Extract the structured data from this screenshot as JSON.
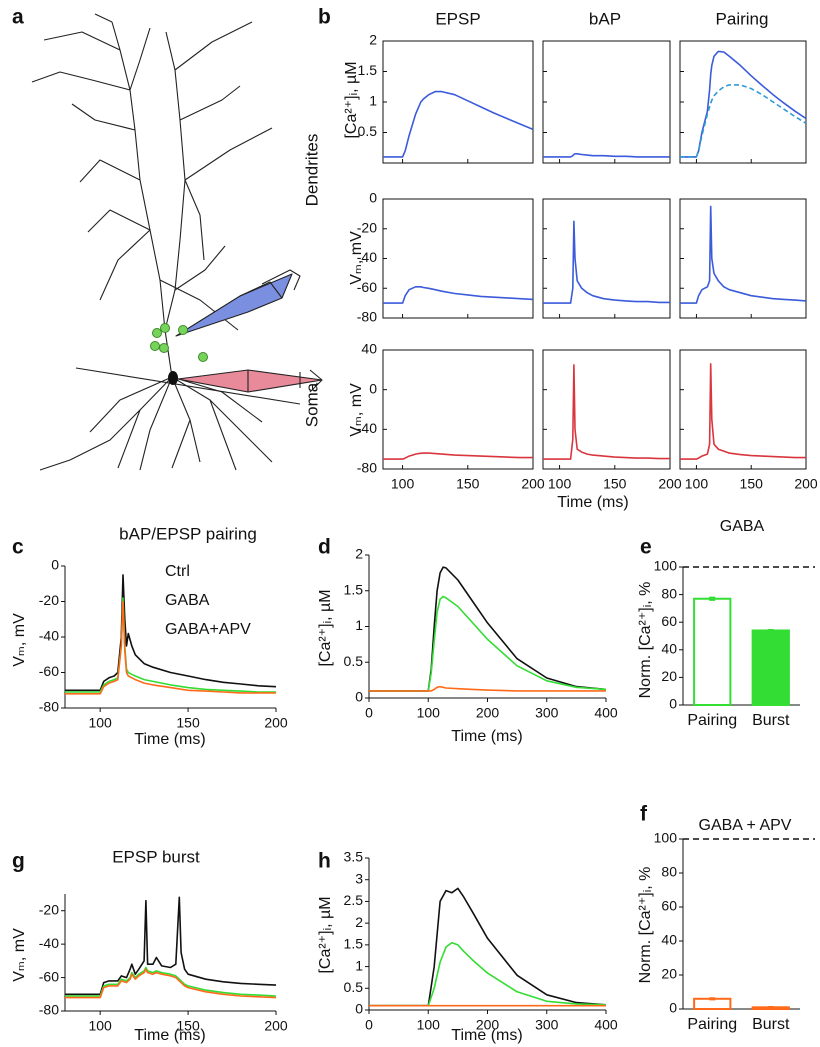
{
  "figure": {
    "panel_a": "a"
  },
  "chart_data": [
    {
      "type": "line",
      "panel": "b",
      "title": "EPSP",
      "ylabel": "[Ca²⁺]ᵢ, µM",
      "x": [
        85,
        100,
        102,
        105,
        110,
        112,
        113,
        114,
        116,
        120,
        125,
        130,
        140,
        150,
        160,
        170,
        180,
        190,
        200
      ],
      "xlim": [
        85,
        200
      ],
      "xticks": [
        100,
        150,
        200
      ],
      "ylim": [
        0,
        2
      ],
      "yticks": [
        0.5,
        1,
        1.5,
        2
      ],
      "series": [
        {
          "color": "#3b5bdb",
          "values": [
            0.1,
            0.1,
            0.2,
            0.45,
            0.8,
            0.9,
            0.95,
            1.0,
            1.05,
            1.12,
            1.17,
            1.17,
            1.12,
            1.02,
            0.92,
            0.82,
            0.73,
            0.64,
            0.55
          ]
        }
      ]
    },
    {
      "type": "line",
      "title": "bAP",
      "x": [
        85,
        100,
        102,
        105,
        110,
        112,
        113,
        114,
        116,
        120,
        125,
        130,
        140,
        150,
        160,
        170,
        180,
        190,
        200
      ],
      "xlim": [
        85,
        200
      ],
      "xticks": [
        100,
        150,
        200
      ],
      "ylim": [
        0,
        2
      ],
      "yticks": [
        0.5,
        1,
        1.5,
        2
      ],
      "series": [
        {
          "color": "#3b5bdb",
          "values": [
            0.1,
            0.1,
            0.1,
            0.1,
            0.1,
            0.12,
            0.14,
            0.15,
            0.15,
            0.14,
            0.13,
            0.12,
            0.12,
            0.11,
            0.11,
            0.1,
            0.1,
            0.1,
            0.1
          ]
        }
      ]
    },
    {
      "type": "line",
      "title": "Pairing",
      "x": [
        85,
        100,
        102,
        105,
        110,
        112,
        113,
        114,
        116,
        120,
        125,
        130,
        140,
        150,
        160,
        170,
        180,
        190,
        200
      ],
      "xlim": [
        85,
        200
      ],
      "xticks": [
        100,
        150,
        200
      ],
      "ylim": [
        0,
        2
      ],
      "yticks": [
        0.5,
        1,
        1.5,
        2
      ],
      "series": [
        {
          "color": "#3b5bdb",
          "values": [
            0.1,
            0.1,
            0.2,
            0.5,
            0.85,
            1.2,
            1.45,
            1.6,
            1.75,
            1.83,
            1.82,
            1.75,
            1.6,
            1.43,
            1.27,
            1.12,
            0.98,
            0.85,
            0.73
          ]
        },
        {
          "color": "#2e9bd6",
          "dashed": true,
          "values": [
            0.1,
            0.1,
            0.2,
            0.45,
            0.8,
            0.92,
            0.98,
            1.03,
            1.1,
            1.18,
            1.25,
            1.28,
            1.28,
            1.22,
            1.12,
            1.0,
            0.88,
            0.76,
            0.65
          ]
        }
      ]
    },
    {
      "type": "line",
      "row_label": "Dendrites",
      "ylabel": "Vₘ, mV",
      "x": [
        85,
        100,
        102,
        105,
        110,
        112,
        113,
        114,
        116,
        120,
        125,
        130,
        140,
        150,
        160,
        170,
        180,
        190,
        200
      ],
      "xlim": [
        85,
        200
      ],
      "xticks": [
        100,
        150,
        200
      ],
      "ylim": [
        -80,
        0
      ],
      "yticks": [
        -80,
        -60,
        -40,
        -20,
        0
      ],
      "series": [
        {
          "color": "#3b5bdb",
          "values": [
            -70,
            -70,
            -65,
            -61,
            -59,
            -59,
            -59,
            -59,
            -59.5,
            -60,
            -61,
            -62,
            -63.5,
            -64.5,
            -65.5,
            -66,
            -66.5,
            -67,
            -67.5
          ]
        }
      ]
    },
    {
      "type": "line",
      "x": [
        85,
        100,
        102,
        105,
        110,
        112,
        113,
        114,
        116,
        120,
        125,
        130,
        140,
        150,
        160,
        170,
        180,
        190,
        200
      ],
      "xlim": [
        85,
        200
      ],
      "xticks": [
        100,
        150,
        200
      ],
      "ylim": [
        -80,
        0
      ],
      "yticks": [
        -80,
        -60,
        -40,
        -20,
        0
      ],
      "series": [
        {
          "color": "#3b5bdb",
          "values": [
            -70,
            -70,
            -70,
            -70,
            -70,
            -60,
            -15,
            -40,
            -55,
            -60,
            -63,
            -65,
            -67,
            -68,
            -68.5,
            -69,
            -69,
            -69.5,
            -69.5
          ]
        }
      ]
    },
    {
      "type": "line",
      "x": [
        85,
        100,
        102,
        105,
        110,
        112,
        113,
        114,
        116,
        120,
        125,
        130,
        140,
        150,
        160,
        170,
        180,
        190,
        200
      ],
      "xlim": [
        85,
        200
      ],
      "xticks": [
        100,
        150,
        200
      ],
      "ylim": [
        -80,
        0
      ],
      "yticks": [
        -80,
        -60,
        -40,
        -20,
        0
      ],
      "series": [
        {
          "color": "#3b5bdb",
          "values": [
            -70,
            -70,
            -65,
            -61,
            -59,
            -55,
            -5,
            -40,
            -50,
            -55,
            -59,
            -61,
            -63,
            -65,
            -66,
            -67,
            -67.5,
            -68,
            -68.5
          ]
        }
      ]
    },
    {
      "type": "line",
      "row_label": "Soma",
      "ylabel": "Vₘ, mV",
      "x": [
        85,
        100,
        102,
        105,
        110,
        112,
        113,
        114,
        116,
        120,
        125,
        130,
        140,
        150,
        160,
        170,
        180,
        190,
        200
      ],
      "xlim": [
        85,
        200
      ],
      "xticks": [
        100,
        150,
        200
      ],
      "ylim": [
        -80,
        40
      ],
      "yticks": [
        -80,
        -40,
        0,
        40
      ],
      "series": [
        {
          "color": "#d9363e",
          "values": [
            -70,
            -70,
            -69,
            -67,
            -65,
            -64.5,
            -64.3,
            -64.2,
            -64,
            -64,
            -64.5,
            -65,
            -66,
            -66.5,
            -67,
            -67.5,
            -68,
            -68.5,
            -68.5
          ]
        }
      ]
    },
    {
      "type": "line",
      "xlabel": "Time (ms)",
      "x": [
        85,
        100,
        102,
        105,
        110,
        112,
        113,
        114,
        116,
        120,
        125,
        130,
        140,
        150,
        160,
        170,
        180,
        190,
        200
      ],
      "xlim": [
        85,
        200
      ],
      "xticks": [
        100,
        150,
        200
      ],
      "ylim": [
        -80,
        40
      ],
      "yticks": [
        -80,
        -40,
        0,
        40
      ],
      "series": [
        {
          "color": "#d9363e",
          "values": [
            -70,
            -70,
            -70,
            -70,
            -70,
            -50,
            25,
            -40,
            -60,
            -63,
            -65,
            -66,
            -67,
            -68,
            -68.5,
            -69,
            -69,
            -69.5,
            -69.5
          ]
        }
      ]
    },
    {
      "type": "line",
      "x": [
        85,
        100,
        102,
        105,
        110,
        112,
        113,
        114,
        116,
        120,
        125,
        130,
        140,
        150,
        160,
        170,
        180,
        190,
        200
      ],
      "xlim": [
        85,
        200
      ],
      "xticks": [
        100,
        150,
        200
      ],
      "ylim": [
        -80,
        40
      ],
      "yticks": [
        -80,
        -40,
        0,
        40
      ],
      "series": [
        {
          "color": "#d9363e",
          "values": [
            -70,
            -70,
            -69,
            -67,
            -65,
            -55,
            26,
            -30,
            -55,
            -60,
            -62,
            -64,
            -65.5,
            -66.5,
            -67,
            -67.5,
            -68,
            -68.5,
            -68.5
          ]
        }
      ]
    },
    {
      "type": "line",
      "panel": "c",
      "title": "bAP/EPSP pairing",
      "ylabel": "Vₘ, mV",
      "xlabel": "Time (ms)",
      "legend": "upper right",
      "x": [
        80,
        100,
        102,
        105,
        108,
        110,
        112,
        113,
        114,
        115,
        116,
        118,
        120,
        125,
        130,
        140,
        150,
        160,
        170,
        180,
        190,
        200
      ],
      "xlim": [
        80,
        200
      ],
      "xticks": [
        100,
        150,
        200
      ],
      "ylim": [
        -80,
        0
      ],
      "yticks": [
        -80,
        -60,
        -40,
        -20,
        0
      ],
      "series": [
        {
          "name": "Ctrl",
          "color": "#111111",
          "values": [
            -70,
            -70,
            -65,
            -63,
            -62,
            -60,
            -40,
            -5,
            -30,
            -45,
            -38,
            -45,
            -50,
            -55,
            -57,
            -60,
            -62,
            -64,
            -65.5,
            -66.5,
            -67.5,
            -68
          ]
        },
        {
          "name": "GABA",
          "color": "#33dd33",
          "values": [
            -71,
            -71,
            -67,
            -65,
            -64,
            -63,
            -45,
            -18,
            -45,
            -58,
            -60,
            -61,
            -62,
            -64,
            -65,
            -67,
            -68.5,
            -69.5,
            -70,
            -70.5,
            -71,
            -71
          ]
        },
        {
          "name": "GABA+APV",
          "color": "#ff6a1a",
          "values": [
            -72,
            -72,
            -68,
            -66,
            -65,
            -64,
            -45,
            -20,
            -48,
            -60,
            -62,
            -63,
            -64,
            -66,
            -67,
            -68.5,
            -70,
            -70.5,
            -71,
            -71.5,
            -71.5,
            -71.5
          ]
        }
      ]
    },
    {
      "type": "line",
      "panel": "d",
      "ylabel": "[Ca²⁺]ᵢ, µM",
      "xlabel": "Time (ms)",
      "x": [
        0,
        100,
        105,
        110,
        115,
        120,
        125,
        130,
        150,
        175,
        200,
        250,
        300,
        350,
        400
      ],
      "xlim": [
        0,
        400
      ],
      "xticks": [
        0,
        100,
        200,
        300,
        400
      ],
      "ylim": [
        0,
        2
      ],
      "yticks": [
        0,
        0.5,
        1,
        1.5,
        2
      ],
      "series": [
        {
          "color": "#111111",
          "values": [
            0.1,
            0.1,
            0.4,
            1.0,
            1.5,
            1.75,
            1.83,
            1.82,
            1.65,
            1.35,
            1.05,
            0.55,
            0.28,
            0.16,
            0.12
          ]
        },
        {
          "color": "#33dd33",
          "values": [
            0.1,
            0.1,
            0.35,
            0.8,
            1.2,
            1.38,
            1.42,
            1.4,
            1.28,
            1.05,
            0.82,
            0.45,
            0.24,
            0.15,
            0.12
          ]
        },
        {
          "color": "#ff6a1a",
          "values": [
            0.1,
            0.1,
            0.1,
            0.12,
            0.15,
            0.16,
            0.15,
            0.14,
            0.13,
            0.12,
            0.11,
            0.1,
            0.1,
            0.1,
            0.1
          ]
        }
      ]
    },
    {
      "type": "bar",
      "panel": "e",
      "annotation": "GABA",
      "ylabel": "Norm. [Ca²⁺]ᵢ, %",
      "color": "#33dd33",
      "categories": [
        "Pairing",
        "Burst"
      ],
      "values": [
        77,
        54
      ],
      "errors": [
        1,
        0.5
      ],
      "filled": [
        false,
        true
      ],
      "ylim": [
        0,
        100
      ],
      "yticks": [
        0,
        20,
        40,
        60,
        80,
        100
      ],
      "reference_line": 100
    },
    {
      "type": "line",
      "panel": "g",
      "title": "EPSP burst",
      "ylabel": "Vₘ, mV",
      "xlabel": "Time (ms)",
      "x": [
        80,
        100,
        102,
        105,
        110,
        112,
        115,
        117,
        118,
        120,
        122,
        125,
        126,
        127,
        130,
        132,
        135,
        140,
        143,
        145,
        146,
        148,
        150,
        160,
        170,
        180,
        190,
        200
      ],
      "xlim": [
        80,
        200
      ],
      "xticks": [
        100,
        150,
        200
      ],
      "ylim": [
        -80,
        -10
      ],
      "yticks": [
        -80,
        -60,
        -40,
        -20
      ],
      "series": [
        {
          "color": "#111111",
          "values": [
            -70,
            -70,
            -63,
            -62,
            -62,
            -59,
            -60,
            -55,
            -52,
            -58,
            -55,
            -50,
            -14,
            -52,
            -52,
            -48,
            -53,
            -54,
            -52,
            -12,
            -45,
            -55,
            -58,
            -61,
            -62.5,
            -63.5,
            -64,
            -64.5
          ]
        },
        {
          "color": "#33dd33",
          "values": [
            -71,
            -71,
            -65,
            -64,
            -64,
            -61,
            -62,
            -60,
            -57,
            -60,
            -58,
            -56,
            -54,
            -56,
            -57,
            -56,
            -57,
            -58,
            -59,
            -61,
            -62,
            -64,
            -65,
            -67.5,
            -69,
            -70,
            -70.5,
            -71
          ]
        },
        {
          "color": "#ff6a1a",
          "values": [
            -72,
            -72,
            -66,
            -65,
            -65,
            -62,
            -63,
            -61,
            -58,
            -61,
            -59,
            -57,
            -55,
            -57,
            -58,
            -57,
            -58,
            -59,
            -60,
            -62,
            -63,
            -65,
            -66,
            -68.5,
            -70,
            -71,
            -71.5,
            -72
          ]
        }
      ]
    },
    {
      "type": "line",
      "panel": "h",
      "ylabel": "[Ca²⁺]ᵢ, µM",
      "xlabel": "Time (ms)",
      "x": [
        0,
        100,
        110,
        120,
        130,
        140,
        150,
        160,
        175,
        200,
        250,
        300,
        350,
        400
      ],
      "xlim": [
        0,
        400
      ],
      "xticks": [
        0,
        100,
        200,
        300,
        400
      ],
      "ylim": [
        0,
        3.5
      ],
      "yticks": [
        0,
        0.5,
        1,
        1.5,
        2,
        2.5,
        3,
        3.5
      ],
      "series": [
        {
          "color": "#111111",
          "values": [
            0.1,
            0.1,
            1.0,
            2.5,
            2.75,
            2.7,
            2.8,
            2.6,
            2.25,
            1.65,
            0.8,
            0.35,
            0.17,
            0.12
          ]
        },
        {
          "color": "#33dd33",
          "values": [
            0.1,
            0.1,
            0.5,
            1.1,
            1.45,
            1.55,
            1.5,
            1.35,
            1.15,
            0.85,
            0.42,
            0.2,
            0.14,
            0.12
          ]
        },
        {
          "color": "#ff6a1a",
          "values": [
            0.1,
            0.1,
            0.1,
            0.1,
            0.1,
            0.1,
            0.1,
            0.1,
            0.1,
            0.1,
            0.1,
            0.1,
            0.1,
            0.1
          ]
        }
      ]
    },
    {
      "type": "bar",
      "panel": "f",
      "annotation": "GABA + APV",
      "ylabel": "Norm. [Ca²⁺]ᵢ, %",
      "color": "#ff6a1a",
      "categories": [
        "Pairing",
        "Burst"
      ],
      "values": [
        6,
        1
      ],
      "errors": [
        0.5,
        0.3
      ],
      "filled": [
        false,
        true
      ],
      "ylim": [
        0,
        100
      ],
      "yticks": [
        0,
        20,
        40,
        60,
        80,
        100
      ],
      "reference_line": 100
    }
  ]
}
